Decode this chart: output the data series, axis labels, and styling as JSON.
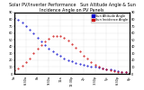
{
  "title": "Solar PV/Inverter Performance   Sun Altitude Angle & Sun Incidence Angle on PV Panels",
  "ylim": [
    0,
    90
  ],
  "xlim": [
    5,
    20
  ],
  "xtick_labels": [
    "5a",
    "6:30a",
    "8a",
    "9:30a",
    "11a",
    "12:30p",
    "2p",
    "3:30p",
    "5p",
    "6:30p",
    "8p"
  ],
  "xtick_positions": [
    5,
    6.5,
    8,
    9.5,
    11,
    12.5,
    14,
    15.5,
    17,
    18.5,
    20
  ],
  "ytick_left": [
    0,
    10,
    20,
    30,
    40,
    50,
    60,
    70,
    80,
    90
  ],
  "ytick_right": [
    0,
    10,
    20,
    30,
    40,
    50,
    60,
    70,
    80,
    90
  ],
  "blue_x": [
    5.0,
    5.5,
    6.0,
    6.5,
    7.0,
    7.5,
    8.0,
    8.5,
    9.0,
    9.5,
    10.0,
    10.5,
    11.0,
    11.5,
    12.0,
    12.5,
    13.0,
    13.5,
    14.0,
    14.5,
    15.0,
    15.5,
    16.0,
    16.5,
    17.0,
    17.5,
    18.0,
    18.5,
    19.0,
    19.5,
    20.0
  ],
  "blue_y": [
    82,
    79,
    75,
    70,
    65,
    59,
    53,
    47,
    42,
    37,
    33,
    29,
    26,
    23,
    20,
    18,
    16,
    14,
    13,
    12,
    11,
    10,
    9,
    8,
    7,
    6,
    5,
    4,
    3,
    2,
    1
  ],
  "red_x": [
    5.0,
    5.5,
    6.0,
    6.5,
    7.0,
    7.5,
    8.0,
    8.5,
    9.0,
    9.5,
    10.0,
    10.5,
    11.0,
    11.5,
    12.0,
    12.5,
    13.0,
    13.5,
    14.0,
    14.5,
    15.0,
    15.5,
    16.0,
    16.5,
    17.0,
    17.5,
    18.0,
    18.5,
    19.0,
    19.5,
    20.0
  ],
  "red_y": [
    5,
    8,
    12,
    17,
    23,
    30,
    37,
    43,
    48,
    52,
    55,
    56,
    55,
    53,
    49,
    44,
    39,
    33,
    27,
    22,
    17,
    13,
    10,
    8,
    6,
    5,
    4,
    3,
    2,
    2,
    1
  ],
  "blue_color": "#0000cc",
  "red_color": "#cc0000",
  "bg_color": "#ffffff",
  "grid_color": "#aaaaaa",
  "legend_blue": "Sun Altitude Angle",
  "legend_red": "Sun Incidence Angle",
  "title_fontsize": 3.5,
  "tick_fontsize": 2.5,
  "legend_fontsize": 2.5
}
